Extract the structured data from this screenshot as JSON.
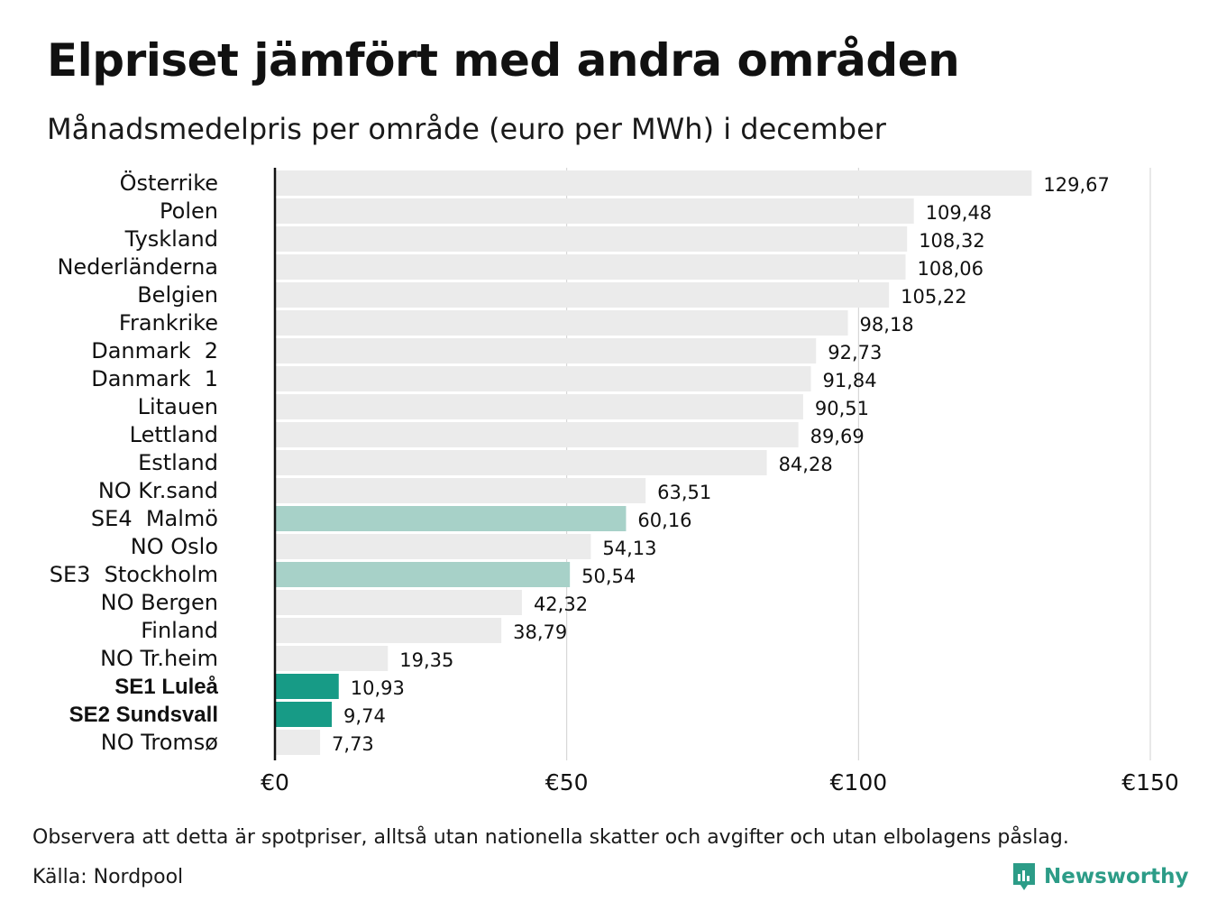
{
  "header": {
    "title": "Elpriset jämfört med andra områden",
    "subtitle": "Månadsmedelpris per område (euro per MWh) i december"
  },
  "footer": {
    "note": "Observera att detta är spotpriser, alltså utan nationella skatter och avgifter och utan elbolagens påslag.",
    "source": "Källa: Nordpool",
    "brand": "Newsworthy",
    "brand_icon": "newsworthy-logo-icon"
  },
  "colors": {
    "default_bar": "#ebebeb",
    "light_highlight": "#a7d1c8",
    "dark_highlight": "#179b86",
    "brand": "#2c9c87",
    "grid": "#d0d0d0",
    "axis": "#111111"
  },
  "chart_data": {
    "type": "bar",
    "orientation": "horizontal",
    "categories": [
      "Österrike",
      "Polen",
      "Tyskland",
      "Nederländerna",
      "Belgien",
      "Frankrike",
      "Danmark  2",
      "Danmark  1",
      "Litauen",
      "Lettland",
      "Estland",
      "NO Kr.sand",
      "SE4  Malmö",
      "NO Oslo",
      "SE3  Stockholm",
      "NO Bergen",
      "Finland",
      "NO Tr.heim",
      "SE1 Luleå",
      "SE2 Sundsvall",
      "NO Tromsø"
    ],
    "values": [
      129.67,
      109.48,
      108.32,
      108.06,
      105.22,
      98.18,
      92.73,
      91.84,
      90.51,
      89.69,
      84.28,
      63.51,
      60.16,
      54.13,
      50.54,
      42.32,
      38.79,
      19.35,
      10.93,
      9.74,
      7.73
    ],
    "value_labels": [
      "129,67",
      "109,48",
      "108,32",
      "108,06",
      "105,22",
      "98,18",
      "92,73",
      "91,84",
      "90,51",
      "89,69",
      "84,28",
      "63,51",
      "60,16",
      "54,13",
      "50,54",
      "42,32",
      "38,79",
      "19,35",
      "10,93",
      "9,74",
      "7,73"
    ],
    "highlight": [
      "none",
      "none",
      "none",
      "none",
      "none",
      "none",
      "none",
      "none",
      "none",
      "none",
      "none",
      "none",
      "light",
      "none",
      "light",
      "none",
      "none",
      "none",
      "dark",
      "dark",
      "none"
    ],
    "bold_labels": [
      "SE1 Luleå",
      "SE2 Sundsvall"
    ],
    "x_ticks": [
      0,
      50,
      100,
      150
    ],
    "x_tick_labels": [
      "€0",
      "€50",
      "€100",
      "€150"
    ],
    "xlim": [
      0,
      150
    ],
    "xlabel": "",
    "ylabel": "",
    "grid": "vertical"
  }
}
